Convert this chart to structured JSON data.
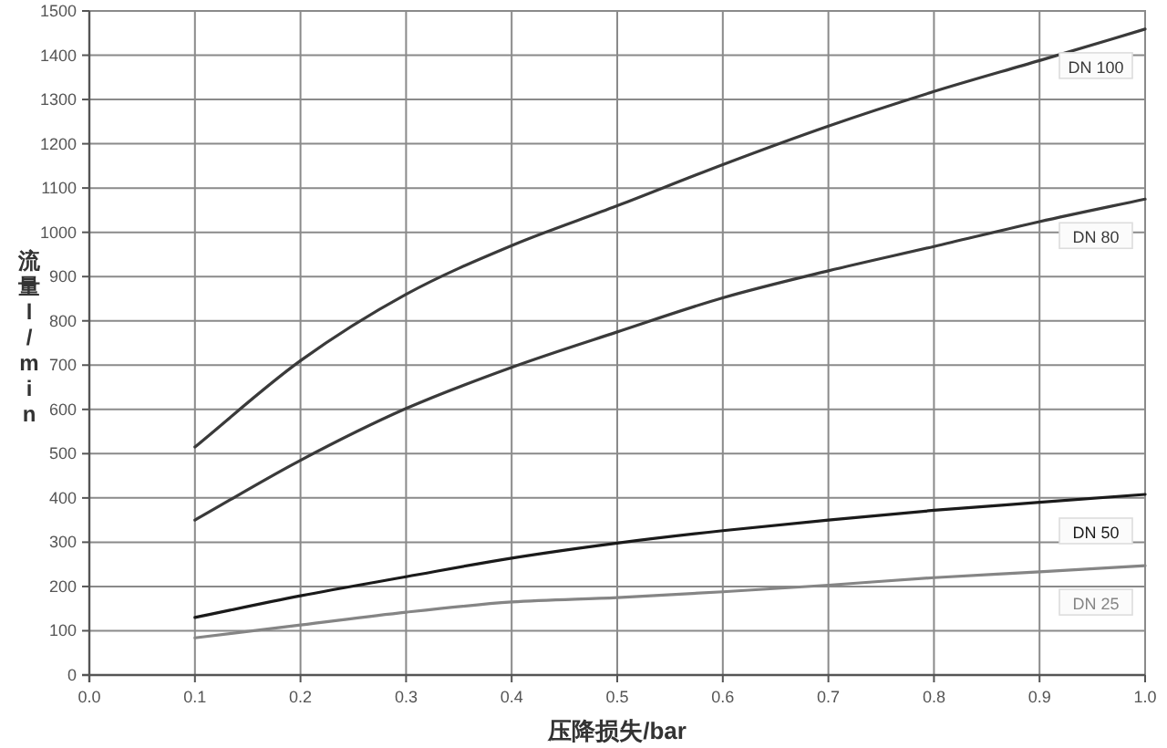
{
  "chart_data": {
    "type": "line",
    "xlabel": "压降损失/bar",
    "ylabel": "流量l/min",
    "x": [
      0.1,
      0.2,
      0.3,
      0.4,
      0.5,
      0.6,
      0.7,
      0.8,
      0.9,
      1.0
    ],
    "series": [
      {
        "name": "DN 100",
        "color": "#3a3a3a",
        "values": [
          515,
          710,
          860,
          970,
          1060,
          1153,
          1240,
          1318,
          1388,
          1459
        ]
      },
      {
        "name": "DN 80",
        "color": "#3a3a3a",
        "values": [
          350,
          485,
          602,
          695,
          775,
          852,
          913,
          968,
          1024,
          1075
        ]
      },
      {
        "name": "DN 50",
        "color": "#1a1a1a",
        "values": [
          130,
          179,
          222,
          264,
          298,
          326,
          350,
          372,
          390,
          408
        ]
      },
      {
        "name": "DN 25",
        "color": "#858585",
        "values": [
          84,
          113,
          142,
          165,
          175,
          188,
          203,
          220,
          233,
          247
        ]
      }
    ],
    "xlim": [
      0,
      1
    ],
    "ylim": [
      0,
      1500
    ],
    "xticks": [
      {
        "value": 0,
        "label": "0.0"
      },
      0.1,
      0.2,
      0.3,
      0.4,
      0.5,
      0.6,
      0.7,
      0.8,
      0.9,
      {
        "value": 1,
        "label": "1.0"
      }
    ],
    "yticks": [
      0,
      100,
      200,
      300,
      400,
      500,
      600,
      700,
      800,
      900,
      1000,
      1100,
      1200,
      1300,
      1400,
      1500
    ],
    "grid": true,
    "legend": false,
    "marker": "none",
    "line_style": "solid"
  }
}
